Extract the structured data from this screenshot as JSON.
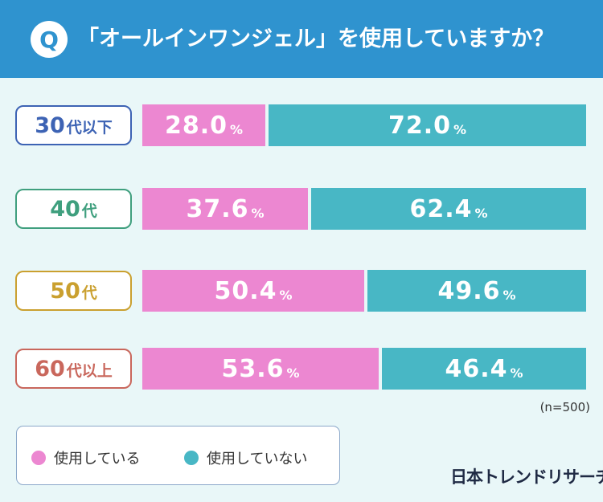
{
  "header": {
    "badge": "Q",
    "title": "「オールインワンジェル」を使用していますか？"
  },
  "chart_data": {
    "type": "bar",
    "stacked": true,
    "orientation": "horizontal",
    "title": "「オールインワンジェル」を使用していますか？",
    "categories": [
      "30代以下",
      "40代",
      "50代",
      "60代以上"
    ],
    "series": [
      {
        "name": "使用している",
        "color": "#ec87d1",
        "values": [
          28.0,
          37.6,
          50.4,
          53.6
        ]
      },
      {
        "name": "使用していない",
        "color": "#48b7c5",
        "values": [
          72.0,
          62.4,
          49.6,
          46.4
        ]
      }
    ],
    "value_suffix": "%",
    "xlim": [
      0,
      100
    ],
    "note": "(n=500)",
    "legend_position": "bottom-left"
  },
  "category_labels": [
    {
      "num": "30",
      "suffix": "代以下",
      "color": "#3d63b4"
    },
    {
      "num": "40",
      "suffix": "代",
      "color": "#3f9f7e"
    },
    {
      "num": "50",
      "suffix": "代",
      "color": "#caa02f"
    },
    {
      "num": "60",
      "suffix": "代以上",
      "color": "#c9675c"
    }
  ],
  "legend": {
    "items": [
      {
        "label": "使用している",
        "color": "#ec87d1"
      },
      {
        "label": "使用していない",
        "color": "#48b7c5"
      }
    ]
  },
  "footer": {
    "brand": "日本トレンドリサーチ"
  }
}
